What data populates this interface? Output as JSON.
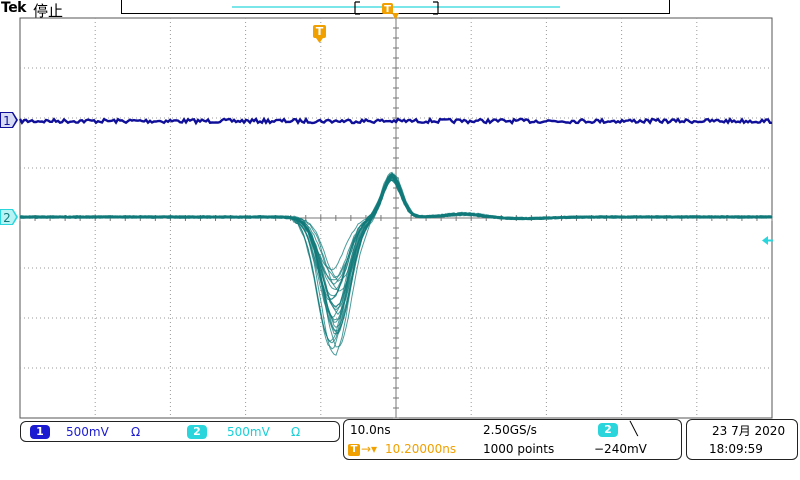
{
  "header": {
    "brand": "Tek",
    "run_state": "停止"
  },
  "channels": [
    {
      "id": "1",
      "volts_per_div": "500mV",
      "coupling": "Ω",
      "color": "#0f0f9a"
    },
    {
      "id": "2",
      "volts_per_div": "500mV",
      "coupling": "Ω",
      "color": "#127a7a"
    }
  ],
  "timebase": {
    "time_per_div": "10.0ns",
    "trigger_position": "10.20000ns",
    "sample_rate": "2.50GS/s",
    "record_length": "1000 points"
  },
  "trigger": {
    "source": "2",
    "slope": "falling",
    "slope_glyph": "╲",
    "level": "−240mV",
    "marker_label": "T"
  },
  "datetime": {
    "date": "23 7月 2020",
    "time": "18:09:59"
  },
  "colors": {
    "ch1": "#0f0f9a",
    "ch2": "#127a7a",
    "ch2_badge": "#2ad6dc",
    "trigger": "#f0a000",
    "grid": "#999999"
  },
  "marker_labels": {
    "ch1": "1",
    "ch2": "2"
  }
}
